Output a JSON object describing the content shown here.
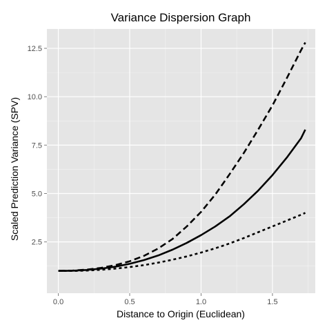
{
  "chart_data": {
    "type": "line",
    "title": "Variance Dispersion Graph",
    "xlabel": "Distance to Origin (Euclidean)",
    "ylabel": "Scaled Prediction Variance (SPV)",
    "xlim": [
      -0.08,
      1.8
    ],
    "ylim": [
      -0.15,
      13.5
    ],
    "x_ticks": [
      0.0,
      0.5,
      1.0,
      1.5
    ],
    "x_tick_labels": [
      "0.0",
      "0.5",
      "1.0",
      "1.5"
    ],
    "y_ticks": [
      2.5,
      5.0,
      7.5,
      10.0,
      12.5
    ],
    "y_tick_labels": [
      "2.5",
      "5.0",
      "7.5",
      "10.0",
      "12.5"
    ],
    "grid": true,
    "background": "#e5e5e5",
    "grid_color": "#ffffff",
    "line_color": "#000000",
    "series": [
      {
        "style": "dashed",
        "x": [
          0.0,
          0.1,
          0.2,
          0.3,
          0.4,
          0.5,
          0.6,
          0.7,
          0.8,
          0.9,
          1.0,
          1.1,
          1.2,
          1.3,
          1.4,
          1.5,
          1.6,
          1.7,
          1.73
        ],
        "y": [
          1.0,
          1.02,
          1.07,
          1.16,
          1.3,
          1.5,
          1.78,
          2.16,
          2.65,
          3.3,
          4.05,
          4.95,
          6.0,
          7.1,
          8.3,
          9.55,
          10.95,
          12.4,
          12.8
        ]
      },
      {
        "style": "solid",
        "x": [
          0.0,
          0.1,
          0.2,
          0.3,
          0.4,
          0.5,
          0.6,
          0.7,
          0.8,
          0.9,
          1.0,
          1.1,
          1.2,
          1.3,
          1.4,
          1.5,
          1.6,
          1.7,
          1.73
        ],
        "y": [
          1.0,
          1.01,
          1.05,
          1.12,
          1.22,
          1.37,
          1.56,
          1.8,
          2.1,
          2.45,
          2.85,
          3.3,
          3.82,
          4.45,
          5.15,
          5.95,
          6.85,
          7.85,
          8.3
        ]
      },
      {
        "style": "dotted",
        "x": [
          0.0,
          0.1,
          0.2,
          0.3,
          0.4,
          0.5,
          0.6,
          0.7,
          0.8,
          0.9,
          1.0,
          1.1,
          1.2,
          1.3,
          1.4,
          1.5,
          1.6,
          1.7,
          1.73
        ],
        "y": [
          1.0,
          1.0,
          1.02,
          1.06,
          1.12,
          1.2,
          1.3,
          1.43,
          1.58,
          1.75,
          1.95,
          2.17,
          2.42,
          2.7,
          3.0,
          3.3,
          3.6,
          3.9,
          4.0
        ]
      }
    ]
  }
}
